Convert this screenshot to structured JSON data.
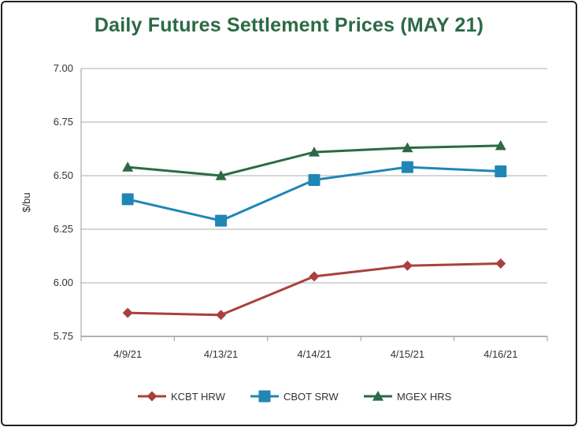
{
  "chart_data": {
    "type": "line",
    "title": "Daily Futures Settlement Prices (MAY 21)",
    "xlabel": "",
    "ylabel": "$/bu",
    "ylim": [
      5.75,
      7.0
    ],
    "yticks": [
      "5.75",
      "6.00",
      "6.25",
      "6.50",
      "6.75",
      "7.00"
    ],
    "grid": true,
    "legend_position": "bottom",
    "categories": [
      "4/9/21",
      "4/13/21",
      "4/14/21",
      "4/15/21",
      "4/16/21"
    ],
    "series": [
      {
        "name": "KCBT HRW",
        "marker": "diamond",
        "color": "#a8413d",
        "values": [
          5.86,
          5.85,
          6.03,
          6.08,
          6.09
        ]
      },
      {
        "name": "CBOT SRW",
        "marker": "square",
        "color": "#1f86b5",
        "values": [
          6.39,
          6.29,
          6.48,
          6.54,
          6.52
        ]
      },
      {
        "name": "MGEX HRS",
        "marker": "triangle",
        "color": "#2b6a45",
        "values": [
          6.54,
          6.5,
          6.61,
          6.63,
          6.64
        ]
      }
    ]
  }
}
